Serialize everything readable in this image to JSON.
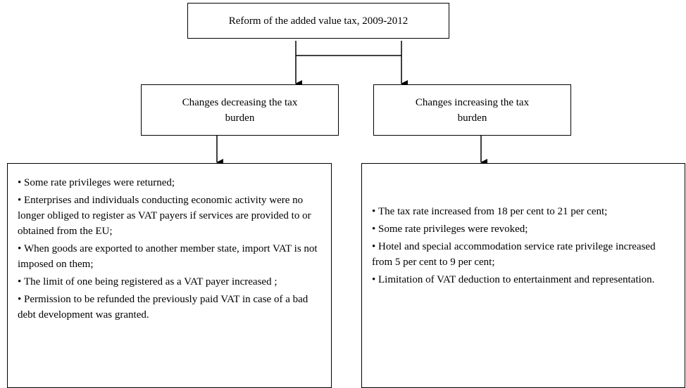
{
  "title": "Reform of the added value tax, 2009-2012",
  "branches": [
    {
      "label": "Changes decreasing the tax burden",
      "items": [
        "Some rate privileges were returned;",
        "Enterprises and individuals conducting economic activity were no longer obliged to register as VAT payers if services are provided to or obtained from the EU;",
        "When goods are exported to another member state, import VAT is not imposed on them;",
        "The limit of one being registered as a VAT payer increased ;",
        "Permission to be refunded the previously paid VAT in case of a bad debt development was granted."
      ]
    },
    {
      "label": "Changes increasing the tax burden",
      "items": [
        "The tax rate increased from 18 per cent to 21 per cent;",
        "Some rate privileges were revoked;",
        "Hotel and special accommodation service rate privilege increased from 5 per cent to 9 per cent;",
        "Limitation of VAT deduction to entertainment and representation."
      ]
    }
  ]
}
